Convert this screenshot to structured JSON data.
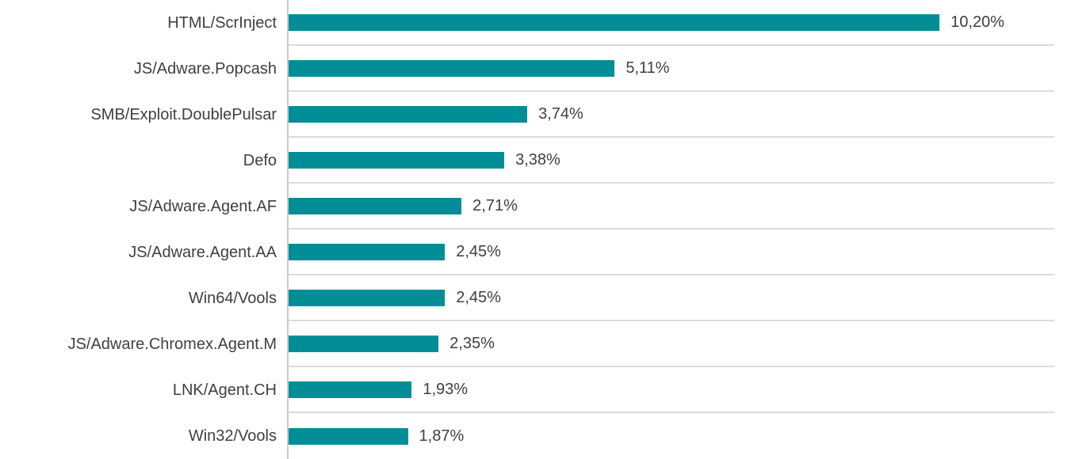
{
  "chart_data": {
    "type": "bar",
    "orientation": "horizontal",
    "title": "",
    "xlabel": "",
    "ylabel": "",
    "xlim": [
      0,
      12
    ],
    "grid": "category-separator-lines",
    "legend_position": "none",
    "unit": "%",
    "decimal_separator": ",",
    "categories": [
      "HTML/ScrInject",
      "JS/Adware.Popcash",
      "SMB/Exploit.DoublePulsar",
      "Defo",
      "JS/Adware.Agent.AF",
      "JS/Adware.Agent.AA",
      "Win64/Vools",
      "JS/Adware.Chromex.Agent.M",
      "LNK/Agent.CH",
      "Win32/Vools"
    ],
    "values": [
      10.2,
      5.11,
      3.74,
      3.38,
      2.71,
      2.45,
      2.45,
      2.35,
      1.93,
      1.87
    ],
    "value_labels": [
      "10,20%",
      "5,11%",
      "3,74%",
      "3,38%",
      "2,71%",
      "2,45%",
      "2,45%",
      "2,35%",
      "1,93%",
      "1,87%"
    ],
    "colors": {
      "bar": "#038E97",
      "gridline": "#DBDBDB",
      "axis_line": "#C9C9C9",
      "text": "#3F3F3F",
      "background": "#FFFFFF"
    }
  }
}
